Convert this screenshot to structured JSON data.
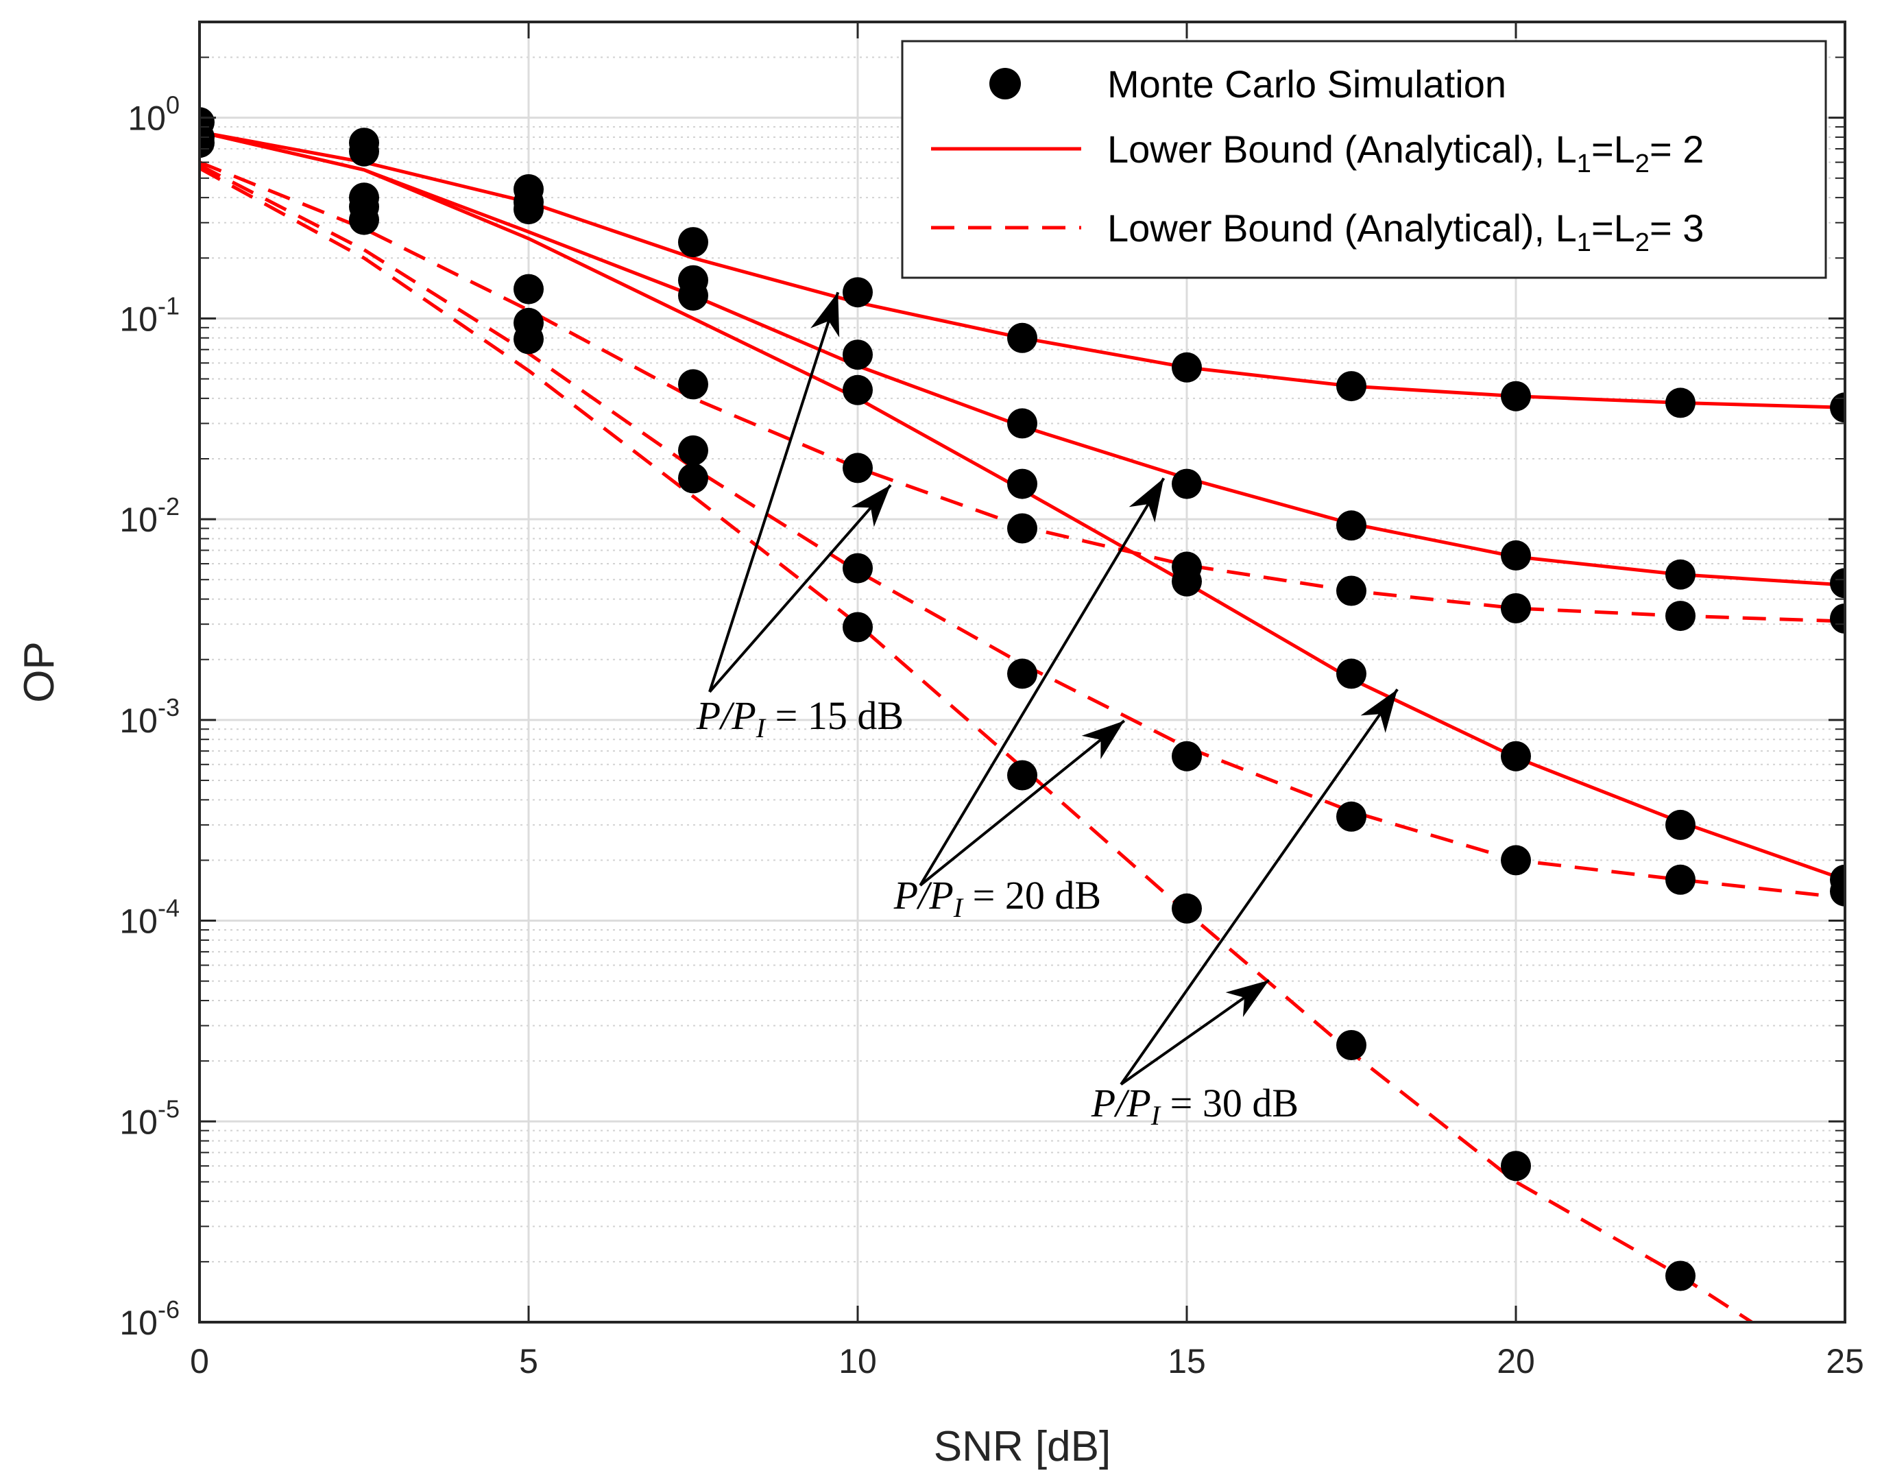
{
  "chart_data": {
    "type": "line",
    "xlabel": "SNR [dB]",
    "ylabel": "OP",
    "x_ticks": [
      0,
      5,
      10,
      15,
      20,
      25
    ],
    "y_ticks": [
      {
        "value": 1,
        "base": "10",
        "exp": "0"
      },
      {
        "value": 0.1,
        "base": "10",
        "exp": "-1"
      },
      {
        "value": 0.01,
        "base": "10",
        "exp": "-2"
      },
      {
        "value": 0.001,
        "base": "10",
        "exp": "-3"
      },
      {
        "value": 0.0001,
        "base": "10",
        "exp": "-4"
      },
      {
        "value": 1e-05,
        "base": "10",
        "exp": "-5"
      },
      {
        "value": 1e-06,
        "base": "10",
        "exp": "-6"
      }
    ],
    "xlim": [
      0,
      25
    ],
    "ylim": [
      1e-06,
      3
    ],
    "yscale": "log",
    "grid": true,
    "legend_position": "top-right",
    "legend": [
      {
        "label": "Monte Carlo Simulation",
        "style": "marker"
      },
      {
        "label_parts": [
          "Lower Bound (Analytical), L",
          "1",
          "=L",
          "2",
          "= 2"
        ],
        "style": "solid"
      },
      {
        "label_parts": [
          "Lower Bound (Analytical), L",
          "1",
          "=L",
          "2",
          "= 3"
        ],
        "style": "dashed"
      }
    ],
    "line_color": "#ff0000",
    "marker_color": "#000000",
    "x": [
      0,
      2.5,
      5,
      7.5,
      10,
      12.5,
      15,
      17.5,
      20,
      22.5,
      25
    ],
    "series": [
      {
        "style": "solid",
        "values": [
          0.85,
          0.6,
          0.38,
          0.2,
          0.12,
          0.08,
          0.057,
          0.046,
          0.041,
          0.038,
          0.036
        ]
      },
      {
        "style": "solid",
        "values": [
          0.85,
          0.55,
          0.27,
          0.13,
          0.058,
          0.029,
          0.016,
          0.0095,
          0.0065,
          0.0053,
          0.0047
        ]
      },
      {
        "style": "solid",
        "values": [
          0.85,
          0.55,
          0.25,
          0.1,
          0.04,
          0.014,
          0.0048,
          0.0016,
          0.00065,
          0.00031,
          0.00016
        ]
      },
      {
        "style": "dashed",
        "values": [
          0.6,
          0.28,
          0.11,
          0.04,
          0.018,
          0.0092,
          0.0059,
          0.0044,
          0.0036,
          0.0033,
          0.0031
        ]
      },
      {
        "style": "dashed",
        "values": [
          0.58,
          0.22,
          0.067,
          0.018,
          0.0055,
          0.0019,
          0.00073,
          0.00035,
          0.0002,
          0.00016,
          0.00013
        ]
      },
      {
        "style": "dashed",
        "values": [
          0.56,
          0.2,
          0.055,
          0.013,
          0.003,
          0.00058,
          0.00011,
          2.2e-05,
          5e-06,
          1.7e-06,
          5e-07
        ]
      }
    ],
    "simulation_points": [
      {
        "x": 0,
        "y": 0.95
      },
      {
        "x": 0,
        "y": 0.8
      },
      {
        "x": 0,
        "y": 0.75
      },
      {
        "x": 2.5,
        "y": 0.75
      },
      {
        "x": 2.5,
        "y": 0.68
      },
      {
        "x": 2.5,
        "y": 0.4
      },
      {
        "x": 2.5,
        "y": 0.36
      },
      {
        "x": 2.5,
        "y": 0.31
      },
      {
        "x": 5,
        "y": 0.44
      },
      {
        "x": 5,
        "y": 0.38
      },
      {
        "x": 5,
        "y": 0.35
      },
      {
        "x": 5,
        "y": 0.14
      },
      {
        "x": 5,
        "y": 0.095
      },
      {
        "x": 5,
        "y": 0.079
      },
      {
        "x": 7.5,
        "y": 0.24
      },
      {
        "x": 7.5,
        "y": 0.155
      },
      {
        "x": 7.5,
        "y": 0.13
      },
      {
        "x": 7.5,
        "y": 0.047
      },
      {
        "x": 7.5,
        "y": 0.022
      },
      {
        "x": 7.5,
        "y": 0.016
      },
      {
        "x": 10,
        "y": 0.135
      },
      {
        "x": 10,
        "y": 0.066
      },
      {
        "x": 10,
        "y": 0.044
      },
      {
        "x": 10,
        "y": 0.018
      },
      {
        "x": 10,
        "y": 0.0057
      },
      {
        "x": 10,
        "y": 0.0029
      },
      {
        "x": 12.5,
        "y": 0.08
      },
      {
        "x": 12.5,
        "y": 0.03
      },
      {
        "x": 12.5,
        "y": 0.015
      },
      {
        "x": 12.5,
        "y": 0.009
      },
      {
        "x": 12.5,
        "y": 0.0017
      },
      {
        "x": 12.5,
        "y": 0.00053
      },
      {
        "x": 15,
        "y": 0.057
      },
      {
        "x": 15,
        "y": 0.015
      },
      {
        "x": 15,
        "y": 0.0058
      },
      {
        "x": 15,
        "y": 0.0049
      },
      {
        "x": 15,
        "y": 0.00066
      },
      {
        "x": 15,
        "y": 0.000115
      },
      {
        "x": 17.5,
        "y": 0.046
      },
      {
        "x": 17.5,
        "y": 0.0093
      },
      {
        "x": 17.5,
        "y": 0.0044
      },
      {
        "x": 17.5,
        "y": 0.0017
      },
      {
        "x": 17.5,
        "y": 0.00033
      },
      {
        "x": 17.5,
        "y": 2.4e-05
      },
      {
        "x": 20,
        "y": 0.041
      },
      {
        "x": 20,
        "y": 0.0066
      },
      {
        "x": 20,
        "y": 0.0036
      },
      {
        "x": 20,
        "y": 0.00066
      },
      {
        "x": 20,
        "y": 0.0002
      },
      {
        "x": 20,
        "y": 6e-06
      },
      {
        "x": 22.5,
        "y": 0.038
      },
      {
        "x": 22.5,
        "y": 0.0053
      },
      {
        "x": 22.5,
        "y": 0.0033
      },
      {
        "x": 22.5,
        "y": 0.0003
      },
      {
        "x": 22.5,
        "y": 0.00016
      },
      {
        "x": 22.5,
        "y": 1.7e-06
      },
      {
        "x": 25,
        "y": 0.036
      },
      {
        "x": 25,
        "y": 0.0048
      },
      {
        "x": 25,
        "y": 0.0032
      },
      {
        "x": 25,
        "y": 0.00016
      },
      {
        "x": 25,
        "y": 0.00014
      }
    ],
    "annotations": [
      {
        "label_parts": [
          "P",
          "/",
          "P",
          "I",
          " = 15 dB"
        ],
        "text_anchor": {
          "x": 7.55,
          "y": 0.0009
        },
        "arrow_tail": {
          "x": 7.75,
          "y": 0.00138
        },
        "arrow_heads": [
          {
            "x": 9.7,
            "y": 0.135
          },
          {
            "x": 10.5,
            "y": 0.0148
          }
        ]
      },
      {
        "label_parts": [
          "P",
          "/",
          "P",
          "I",
          " = 20 dB"
        ],
        "text_anchor": {
          "x": 10.55,
          "y": 0.000115
        },
        "arrow_tail": {
          "x": 10.95,
          "y": 0.00015
        },
        "arrow_heads": [
          {
            "x": 14.65,
            "y": 0.016
          },
          {
            "x": 14.05,
            "y": 0.00099
          }
        ]
      },
      {
        "label_parts": [
          "P",
          "/",
          "P",
          "I",
          " = 30 dB"
        ],
        "text_anchor": {
          "x": 13.55,
          "y": 1.06e-05
        },
        "arrow_tail": {
          "x": 14.0,
          "y": 1.53e-05
        },
        "arrow_heads": [
          {
            "x": 18.2,
            "y": 0.00142
          },
          {
            "x": 16.25,
            "y": 5.05e-05
          }
        ]
      }
    ]
  }
}
